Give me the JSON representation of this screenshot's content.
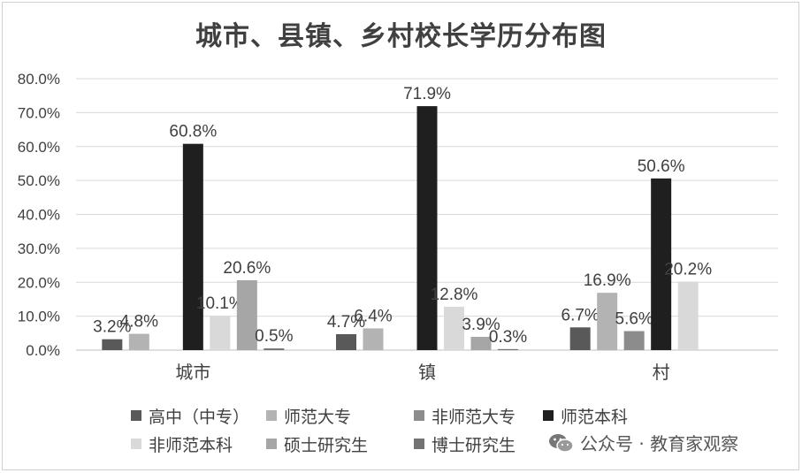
{
  "title": "城市、县镇、乡村校长学历分布图",
  "watermark": {
    "text": "公众号 · 教育家观察",
    "icon": "wechat-icon"
  },
  "chart_data": {
    "type": "bar",
    "categories": [
      "城市",
      "镇",
      "村"
    ],
    "ylim": [
      0,
      80
    ],
    "yticks": [
      "0.0%",
      "10.0%",
      "20.0%",
      "30.0%",
      "40.0%",
      "50.0%",
      "60.0%",
      "70.0%",
      "80.0%"
    ],
    "grid": true,
    "legend_position": "bottom",
    "series": [
      {
        "name": "高中（中专）",
        "color": "#595959",
        "values": [
          3.2,
          4.7,
          6.7
        ],
        "labels": [
          "3.2%",
          "4.7%",
          "6.7%"
        ]
      },
      {
        "name": "师范大专",
        "color": "#b3b3b3",
        "values": [
          4.8,
          6.4,
          16.9
        ],
        "labels": [
          "4.8%",
          "6.4%",
          "16.9%"
        ]
      },
      {
        "name": "非师范大专",
        "color": "#8c8c8c",
        "values": [
          0,
          0,
          5.6
        ],
        "labels": [
          "",
          "",
          "5.6%"
        ]
      },
      {
        "name": "师范本科",
        "color": "#1f1f1f",
        "values": [
          60.8,
          71.9,
          50.6
        ],
        "labels": [
          "60.8%",
          "71.9%",
          "50.6%"
        ]
      },
      {
        "name": "非师范本科",
        "color": "#d9d9d9",
        "values": [
          10.1,
          12.8,
          20.2
        ],
        "labels": [
          "10.1%",
          "12.8%",
          "20.2%"
        ]
      },
      {
        "name": "硕士研究生",
        "color": "#a6a6a6",
        "values": [
          20.6,
          3.9,
          0
        ],
        "labels": [
          "20.6%",
          "3.9%",
          ""
        ]
      },
      {
        "name": "博士研究生",
        "color": "#737373",
        "values": [
          0.5,
          0.3,
          0
        ],
        "labels": [
          "0.5%",
          "0.3%",
          ""
        ]
      }
    ]
  }
}
